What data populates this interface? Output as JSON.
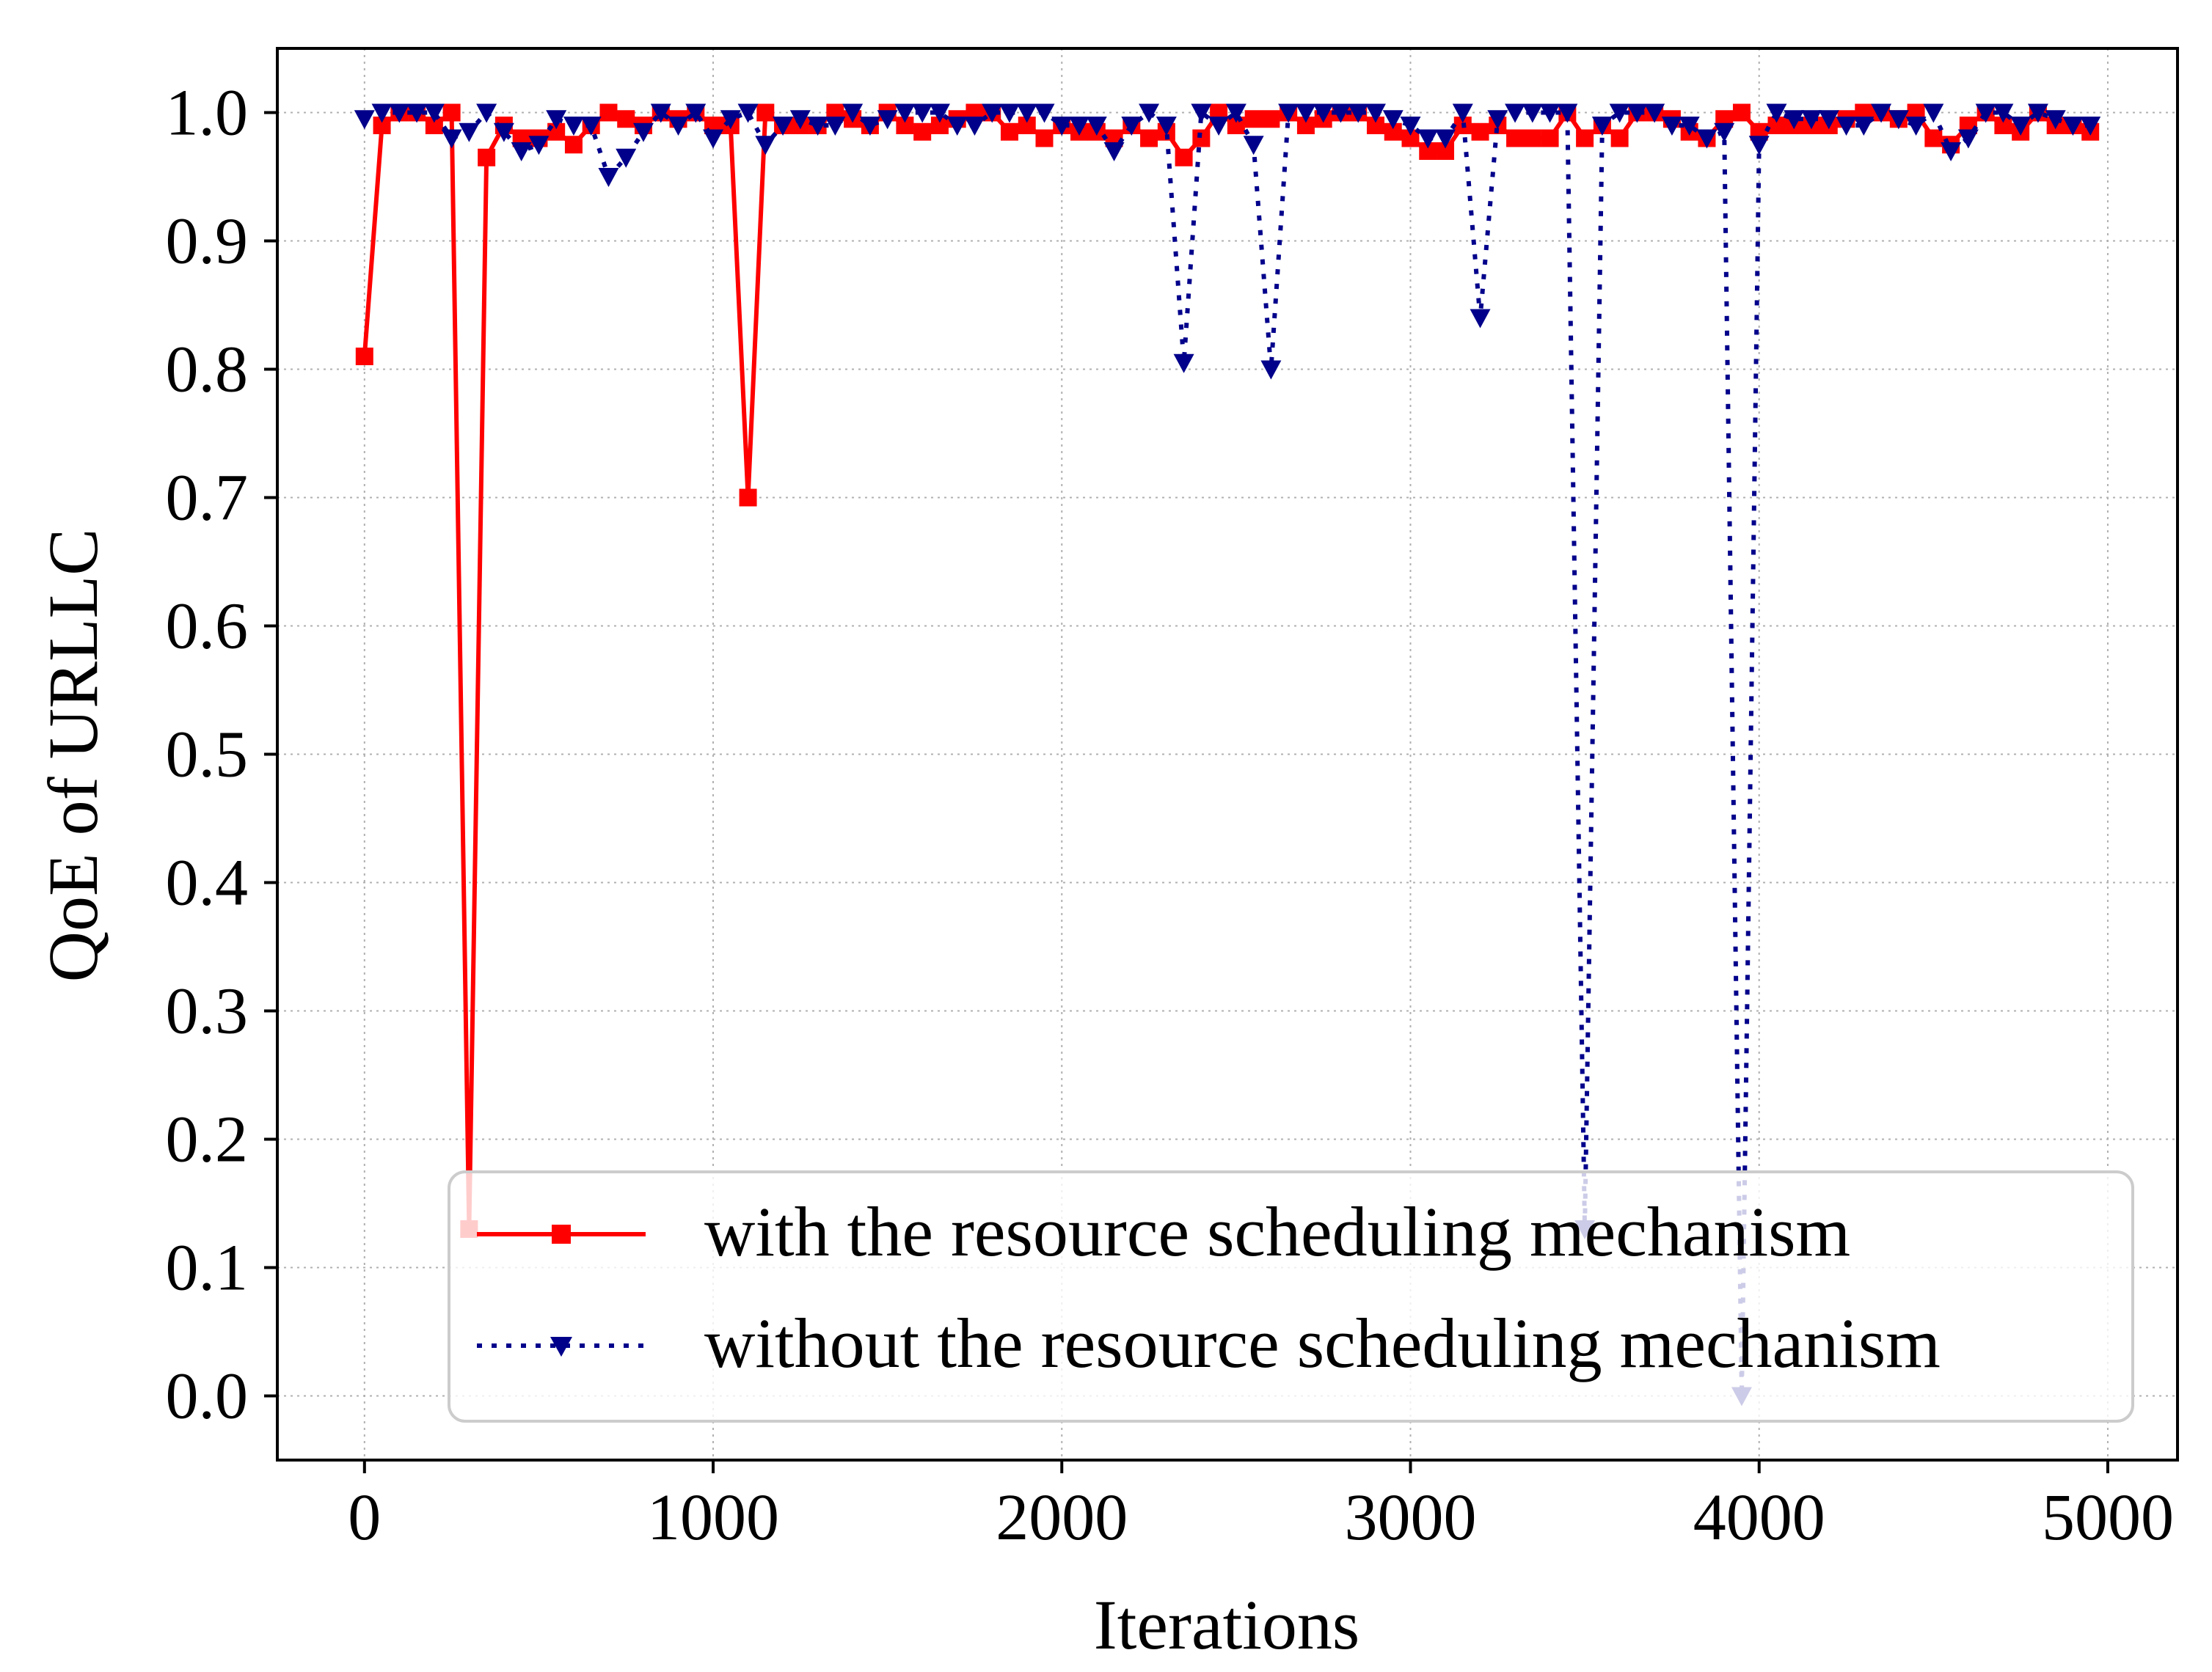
{
  "chart_data": {
    "type": "line",
    "title": "",
    "xlabel": "Iterations",
    "ylabel": "QoE of URLLC",
    "xlim": [
      -250,
      5200
    ],
    "ylim": [
      -0.05,
      1.05
    ],
    "xticks": [
      0,
      1000,
      2000,
      3000,
      4000,
      5000
    ],
    "xtick_labels": [
      "0",
      "1000",
      "2000",
      "3000",
      "4000",
      "5000"
    ],
    "yticks": [
      0.0,
      0.1,
      0.2,
      0.3,
      0.4,
      0.5,
      0.6,
      0.7,
      0.8,
      0.9,
      1.0
    ],
    "ytick_labels": [
      "0.0",
      "0.1",
      "0.2",
      "0.3",
      "0.4",
      "0.5",
      "0.6",
      "0.7",
      "0.8",
      "0.9",
      "1.0"
    ],
    "grid": true,
    "legend_position": "lower-right",
    "series": [
      {
        "name": "with the resource scheduling mechanism",
        "color": "#ff0000",
        "line_style": "solid",
        "marker": "square",
        "x": [
          0,
          50,
          100,
          150,
          200,
          250,
          300,
          350,
          400,
          450,
          500,
          550,
          600,
          650,
          700,
          750,
          800,
          850,
          900,
          950,
          1000,
          1050,
          1100,
          1150,
          1200,
          1250,
          1300,
          1350,
          1400,
          1450,
          1500,
          1550,
          1600,
          1650,
          1700,
          1750,
          1800,
          1850,
          1900,
          1950,
          2000,
          2050,
          2100,
          2150,
          2200,
          2250,
          2300,
          2350,
          2400,
          2450,
          2500,
          2550,
          2600,
          2650,
          2700,
          2750,
          2800,
          2850,
          2900,
          2950,
          3000,
          3050,
          3100,
          3150,
          3200,
          3250,
          3300,
          3350,
          3400,
          3450,
          3500,
          3550,
          3600,
          3650,
          3700,
          3750,
          3800,
          3850,
          3900,
          3950,
          4000,
          4050,
          4100,
          4150,
          4200,
          4250,
          4300,
          4350,
          4400,
          4450,
          4500,
          4550,
          4600,
          4650,
          4700,
          4750,
          4800,
          4850,
          4900,
          4950
        ],
        "y": [
          0.81,
          0.99,
          1.0,
          1.0,
          0.99,
          1.0,
          0.13,
          0.965,
          0.99,
          0.98,
          0.98,
          0.985,
          0.975,
          0.99,
          1.0,
          0.995,
          0.99,
          1.0,
          0.995,
          1.0,
          0.99,
          0.99,
          0.7,
          1.0,
          0.99,
          0.99,
          0.99,
          1.0,
          0.995,
          0.99,
          1.0,
          0.99,
          0.985,
          0.99,
          0.995,
          1.0,
          1.0,
          0.985,
          0.99,
          0.98,
          0.99,
          0.985,
          0.985,
          0.98,
          0.99,
          0.98,
          0.985,
          0.965,
          0.98,
          1.0,
          0.99,
          0.995,
          0.995,
          1.0,
          0.99,
          0.995,
          1.0,
          1.0,
          0.99,
          0.985,
          0.98,
          0.97,
          0.97,
          0.99,
          0.985,
          0.99,
          0.98,
          0.98,
          0.98,
          1.0,
          0.98,
          0.99,
          0.98,
          1.0,
          1.0,
          0.995,
          0.985,
          0.98,
          0.995,
          1.0,
          0.985,
          0.99,
          0.99,
          0.99,
          0.99,
          0.995,
          1.0,
          1.0,
          0.995,
          1.0,
          0.98,
          0.975,
          0.99,
          1.0,
          0.99,
          0.985,
          1.0,
          0.99,
          0.99,
          0.985
        ]
      },
      {
        "name": "without the resource scheduling mechanism",
        "color": "#00008b",
        "line_style": "dotted",
        "marker": "triangle-down",
        "x": [
          0,
          50,
          100,
          150,
          200,
          250,
          300,
          350,
          400,
          450,
          500,
          550,
          600,
          650,
          700,
          750,
          800,
          850,
          900,
          950,
          1000,
          1050,
          1100,
          1150,
          1200,
          1250,
          1300,
          1350,
          1400,
          1450,
          1500,
          1550,
          1600,
          1650,
          1700,
          1750,
          1800,
          1850,
          1900,
          1950,
          2000,
          2050,
          2100,
          2150,
          2200,
          2250,
          2300,
          2350,
          2400,
          2450,
          2500,
          2550,
          2600,
          2650,
          2700,
          2750,
          2800,
          2850,
          2900,
          2950,
          3000,
          3050,
          3100,
          3150,
          3200,
          3250,
          3300,
          3350,
          3400,
          3450,
          3500,
          3550,
          3600,
          3650,
          3700,
          3750,
          3800,
          3850,
          3900,
          3950,
          4000,
          4050,
          4100,
          4150,
          4200,
          4250,
          4300,
          4350,
          4400,
          4450,
          4500,
          4550,
          4600,
          4650,
          4700,
          4750,
          4800,
          4850,
          4900,
          4950
        ],
        "y": [
          0.995,
          1.0,
          1.0,
          1.0,
          1.0,
          0.98,
          0.985,
          1.0,
          0.985,
          0.97,
          0.975,
          0.995,
          0.99,
          0.99,
          0.95,
          0.965,
          0.985,
          1.0,
          0.99,
          1.0,
          0.98,
          0.995,
          1.0,
          0.975,
          0.99,
          0.995,
          0.99,
          0.99,
          1.0,
          0.99,
          0.995,
          1.0,
          1.0,
          1.0,
          0.99,
          0.99,
          1.0,
          1.0,
          1.0,
          1.0,
          0.99,
          0.99,
          0.99,
          0.97,
          0.99,
          1.0,
          0.99,
          0.805,
          1.0,
          0.99,
          1.0,
          0.975,
          0.8,
          1.0,
          1.0,
          1.0,
          1.0,
          1.0,
          1.0,
          0.995,
          0.99,
          0.98,
          0.98,
          1.0,
          0.84,
          0.995,
          1.0,
          1.0,
          1.0,
          1.0,
          0.13,
          0.99,
          1.0,
          1.0,
          1.0,
          0.99,
          0.99,
          0.98,
          0.985,
          0.0,
          0.975,
          1.0,
          0.995,
          0.995,
          0.995,
          0.99,
          0.99,
          1.0,
          0.995,
          0.99,
          1.0,
          0.97,
          0.98,
          1.0,
          1.0,
          0.99,
          1.0,
          0.995,
          0.99,
          0.99
        ]
      }
    ]
  }
}
